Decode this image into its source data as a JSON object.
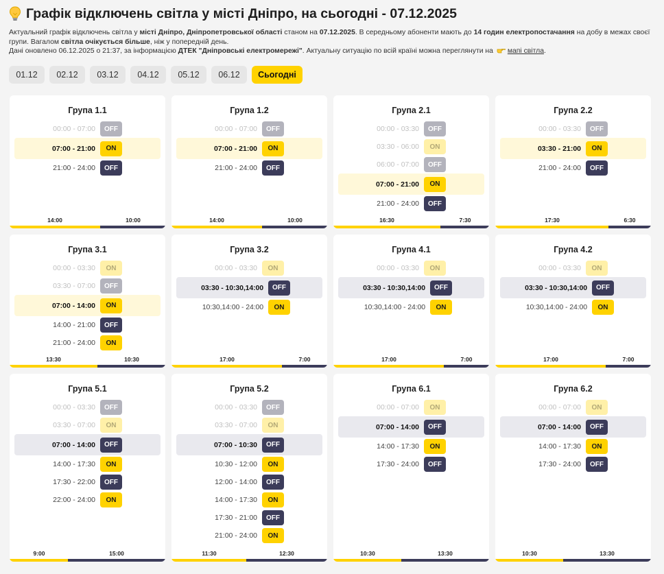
{
  "header": {
    "title_pre": "Графік відключень світла у місті ",
    "title_city": "Дніпро",
    "title_post": ", на сьогодні - 07.12.2025",
    "d1": "Актуальний графік відключень світла у ",
    "d2": "місті Дніпро, Дніпропетровської області",
    "d3": " станом на ",
    "d4": "07.12.2025",
    "d5": ". В середньому абоненти мають до ",
    "d6": "14 годин електропостачання",
    "d7": " на добу в межах своєї групи. Вагалом ",
    "d8": "світла очікується більше",
    "d9": ", ніж у попередній день.",
    "d10": "Дані оновлено 06.12.2025 о 21:37, за інформацією ",
    "d11": "ДТЕК \"Дніпровські електромережі\"",
    "d12": ". Актуальну ситуацію по всій країні можна переглянути на ",
    "link": "мапі світла",
    "d13": "."
  },
  "dates": [
    "01.12",
    "02.12",
    "03.12",
    "04.12",
    "05.12",
    "06.12",
    "Сьогодні"
  ],
  "groups": [
    {
      "name": "Група 1.1",
      "rows": [
        {
          "t": "00:00 - 07:00",
          "s": "OFF",
          "st": "past"
        },
        {
          "t": "07:00 - 21:00",
          "s": "ON",
          "st": "cur"
        },
        {
          "t": "21:00 - 24:00",
          "s": "OFF",
          "st": ""
        }
      ],
      "foot": [
        "14:00",
        "10:00"
      ],
      "on_fraction": 0.583
    },
    {
      "name": "Група 1.2",
      "rows": [
        {
          "t": "00:00 - 07:00",
          "s": "OFF",
          "st": "past"
        },
        {
          "t": "07:00 - 21:00",
          "s": "ON",
          "st": "cur"
        },
        {
          "t": "21:00 - 24:00",
          "s": "OFF",
          "st": ""
        }
      ],
      "foot": [
        "14:00",
        "10:00"
      ],
      "on_fraction": 0.583
    },
    {
      "name": "Група 2.1",
      "rows": [
        {
          "t": "00:00 - 03:30",
          "s": "OFF",
          "st": "past"
        },
        {
          "t": "03:30 - 06:00",
          "s": "ON",
          "st": "past"
        },
        {
          "t": "06:00 - 07:00",
          "s": "OFF",
          "st": "past"
        },
        {
          "t": "07:00 - 21:00",
          "s": "ON",
          "st": "cur"
        },
        {
          "t": "21:00 - 24:00",
          "s": "OFF",
          "st": ""
        }
      ],
      "foot": [
        "16:30",
        "7:30"
      ],
      "on_fraction": 0.688
    },
    {
      "name": "Група 2.2",
      "rows": [
        {
          "t": "00:00 - 03:30",
          "s": "OFF",
          "st": "past"
        },
        {
          "t": "03:30 - 21:00",
          "s": "ON",
          "st": "cur"
        },
        {
          "t": "21:00 - 24:00",
          "s": "OFF",
          "st": ""
        }
      ],
      "foot": [
        "17:30",
        "6:30"
      ],
      "on_fraction": 0.729
    },
    {
      "name": "Група 3.1",
      "rows": [
        {
          "t": "00:00 - 03:30",
          "s": "ON",
          "st": "past"
        },
        {
          "t": "03:30 - 07:00",
          "s": "OFF",
          "st": "past"
        },
        {
          "t": "07:00 - 14:00",
          "s": "ON",
          "st": "cur"
        },
        {
          "t": "14:00 - 21:00",
          "s": "OFF",
          "st": ""
        },
        {
          "t": "21:00 - 24:00",
          "s": "ON",
          "st": ""
        }
      ],
      "foot": [
        "13:30",
        "10:30"
      ],
      "on_fraction": 0.563
    },
    {
      "name": "Група 3.2",
      "rows": [
        {
          "t": "00:00 - 03:30",
          "s": "ON",
          "st": "past"
        },
        {
          "t": "03:30 - 10:30,14:00",
          "s": "OFF",
          "st": "cur"
        },
        {
          "t": "10:30,14:00 - 24:00",
          "s": "ON",
          "st": ""
        }
      ],
      "foot": [
        "17:00",
        "7:00"
      ],
      "on_fraction": 0.708
    },
    {
      "name": "Група 4.1",
      "rows": [
        {
          "t": "00:00 - 03:30",
          "s": "ON",
          "st": "past"
        },
        {
          "t": "03:30 - 10:30,14:00",
          "s": "OFF",
          "st": "cur"
        },
        {
          "t": "10:30,14:00 - 24:00",
          "s": "ON",
          "st": ""
        }
      ],
      "foot": [
        "17:00",
        "7:00"
      ],
      "on_fraction": 0.708
    },
    {
      "name": "Група 4.2",
      "rows": [
        {
          "t": "00:00 - 03:30",
          "s": "ON",
          "st": "past"
        },
        {
          "t": "03:30 - 10:30,14:00",
          "s": "OFF",
          "st": "cur"
        },
        {
          "t": "10:30,14:00 - 24:00",
          "s": "ON",
          "st": ""
        }
      ],
      "foot": [
        "17:00",
        "7:00"
      ],
      "on_fraction": 0.708
    },
    {
      "name": "Група 5.1",
      "rows": [
        {
          "t": "00:00 - 03:30",
          "s": "OFF",
          "st": "past"
        },
        {
          "t": "03:30 - 07:00",
          "s": "ON",
          "st": "past"
        },
        {
          "t": "07:00 - 14:00",
          "s": "OFF",
          "st": "cur"
        },
        {
          "t": "14:00 - 17:30",
          "s": "ON",
          "st": ""
        },
        {
          "t": "17:30 - 22:00",
          "s": "OFF",
          "st": ""
        },
        {
          "t": "22:00 - 24:00",
          "s": "ON",
          "st": ""
        }
      ],
      "foot": [
        "9:00",
        "15:00"
      ],
      "on_fraction": 0.375
    },
    {
      "name": "Група 5.2",
      "rows": [
        {
          "t": "00:00 - 03:30",
          "s": "OFF",
          "st": "past"
        },
        {
          "t": "03:30 - 07:00",
          "s": "ON",
          "st": "past"
        },
        {
          "t": "07:00 - 10:30",
          "s": "OFF",
          "st": "cur"
        },
        {
          "t": "10:30 - 12:00",
          "s": "ON",
          "st": ""
        },
        {
          "t": "12:00 - 14:00",
          "s": "OFF",
          "st": ""
        },
        {
          "t": "14:00 - 17:30",
          "s": "ON",
          "st": ""
        },
        {
          "t": "17:30 - 21:00",
          "s": "OFF",
          "st": ""
        },
        {
          "t": "21:00 - 24:00",
          "s": "ON",
          "st": ""
        }
      ],
      "foot": [
        "11:30",
        "12:30"
      ],
      "on_fraction": 0.479
    },
    {
      "name": "Група 6.1",
      "rows": [
        {
          "t": "00:00 - 07:00",
          "s": "ON",
          "st": "past"
        },
        {
          "t": "07:00 - 14:00",
          "s": "OFF",
          "st": "cur"
        },
        {
          "t": "14:00 - 17:30",
          "s": "ON",
          "st": ""
        },
        {
          "t": "17:30 - 24:00",
          "s": "OFF",
          "st": ""
        }
      ],
      "foot": [
        "10:30",
        "13:30"
      ],
      "on_fraction": 0.438
    },
    {
      "name": "Група 6.2",
      "rows": [
        {
          "t": "00:00 - 07:00",
          "s": "ON",
          "st": "past"
        },
        {
          "t": "07:00 - 14:00",
          "s": "OFF",
          "st": "cur"
        },
        {
          "t": "14:00 - 17:30",
          "s": "ON",
          "st": ""
        },
        {
          "t": "17:30 - 24:00",
          "s": "OFF",
          "st": ""
        }
      ],
      "foot": [
        "10:30",
        "13:30"
      ],
      "on_fraction": 0.438
    }
  ],
  "colors": {
    "accent": "#ffd200",
    "dark": "#3c3c5a",
    "bg": "#f4f4f4"
  }
}
